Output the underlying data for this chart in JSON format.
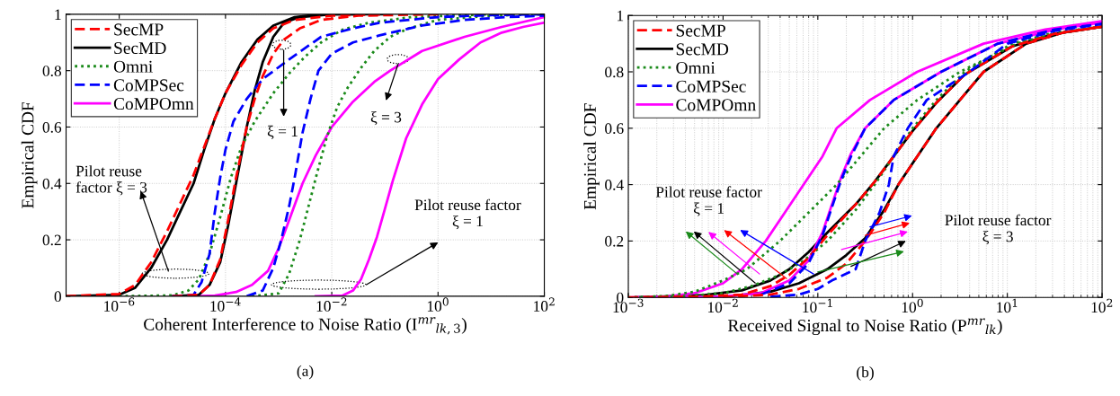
{
  "chart_data": [
    {
      "type": "line",
      "xlabel": "Coherent Interference to Noise Ratio (I$^{mr}$$_{lk,3}$)",
      "ylabel": "Empirical CDF",
      "log": "x",
      "grid": true,
      "legend": "top left",
      "xlim": [
        1e-07,
        100
      ],
      "xticks": [
        {
          "value": 1e-06,
          "label": "10$^{−6}$"
        },
        {
          "value": 0.0001,
          "label": "10$^{−4}$"
        },
        {
          "value": 0.01,
          "label": "10$^{−2}$"
        },
        {
          "value": 1,
          "label": "10$^{0}$"
        },
        {
          "value": 100,
          "label": "10$^{2}$"
        }
      ],
      "ylim": [
        0,
        1
      ],
      "yticks": [
        0,
        0.2,
        0.4,
        0.6,
        0.8,
        1
      ],
      "annotations": [
        "Pilot reuse\nfactor ξ = 3",
        "ξ = 1",
        "ξ = 3",
        "Pilot reuse factor\nξ = 1",
        "(a)"
      ],
      "series": [
        {
          "name": "SecMP",
          "color": "#ff0000",
          "line_style": "dashed",
          "x": [
            1e-07,
            1e-06,
            2e-06,
            3.98e-06,
            7.94e-06,
            1.41e-05,
            2.51e-05,
            3.98e-05,
            6.31e-05,
            0.0001,
            0.0002,
            0.000398,
            0.000794,
            0.002,
            0.01,
            0.1
          ],
          "values": [
            0,
            0.008,
            0.04,
            0.12,
            0.23,
            0.33,
            0.43,
            0.53,
            0.63,
            0.72,
            0.82,
            0.9,
            0.95,
            0.98,
            0.995,
            1
          ]
        },
        {
          "name": "SecMD",
          "color": "#000000",
          "line_style": "solid",
          "x": [
            1e-07,
            1e-06,
            2e-06,
            3.98e-06,
            7.94e-06,
            1.41e-05,
            2.51e-05,
            3.98e-05,
            6.31e-05,
            0.0001,
            0.0002,
            0.000398,
            0.000794,
            0.002,
            0.00631,
            0.0316
          ],
          "values": [
            0,
            0.005,
            0.03,
            0.1,
            0.2,
            0.3,
            0.4,
            0.52,
            0.63,
            0.72,
            0.83,
            0.91,
            0.96,
            0.99,
            1,
            1
          ]
        },
        {
          "name": "Omni",
          "color": "#1a8a1a",
          "line_style": "dotted",
          "x": [
            1e-06,
            1e-05,
            2e-05,
            3.16e-05,
            5.01e-05,
            7.94e-05,
            0.000126,
            0.0002,
            0.000355,
            0.000794,
            0.00158,
            0.00316,
            0.00631,
            0.0158,
            0.0501,
            0.316,
            10
          ],
          "values": [
            0,
            0.003,
            0.02,
            0.06,
            0.15,
            0.28,
            0.42,
            0.53,
            0.62,
            0.72,
            0.79,
            0.85,
            0.9,
            0.945,
            0.97,
            0.99,
            1
          ]
        },
        {
          "name": "CoMPSec",
          "color": "#0000ff",
          "line_style": "dashed",
          "x": [
            1e-05,
            2.51e-05,
            3.55e-05,
            5.01e-05,
            6.31e-05,
            7.94e-05,
            0.0001,
            0.000141,
            0.000251,
            0.000501,
            0.00158,
            0.00631,
            0.0251,
            0.0794,
            1,
            10,
            100
          ],
          "values": [
            0,
            0.005,
            0.05,
            0.15,
            0.3,
            0.42,
            0.52,
            0.62,
            0.7,
            0.77,
            0.84,
            0.92,
            0.95,
            0.97,
            0.99,
            0.997,
            1
          ]
        },
        {
          "name": "CoMPOmn",
          "color": "#ff00ff",
          "line_style": "solid",
          "x": [
            2.51e-05,
            6.31e-05,
            0.000158,
            0.000316,
            0.000631,
            0.001,
            0.00158,
            0.00282,
            0.00501,
            0.01,
            0.0251,
            0.0631,
            0.126,
            0.501,
            3.16,
            15.8,
            100
          ],
          "values": [
            0,
            0.002,
            0.015,
            0.04,
            0.09,
            0.17,
            0.27,
            0.4,
            0.5,
            0.6,
            0.69,
            0.76,
            0.8,
            0.87,
            0.92,
            0.955,
            0.99
          ]
        },
        {
          "color": "#ff0000",
          "line_style": "dashed",
          "x": [
            1e-05,
            3.16e-05,
            5.01e-05,
            7.94e-05,
            0.000112,
            0.000158,
            0.000251,
            0.000355,
            0.000501,
            0.000794,
            0.00126,
            0.00251,
            0.00631,
            0.0316,
            1
          ],
          "values": [
            0,
            0.005,
            0.04,
            0.13,
            0.27,
            0.42,
            0.6,
            0.7,
            0.78,
            0.86,
            0.91,
            0.95,
            0.98,
            0.995,
            1
          ]
        },
        {
          "color": "#000000",
          "line_style": "solid",
          "x": [
            1e-05,
            3.16e-05,
            5.01e-05,
            7.94e-05,
            0.000112,
            0.000158,
            0.000251,
            0.000355,
            0.000501,
            0.000794,
            0.00126,
            0.00251,
            0.01,
            0.1
          ],
          "values": [
            0,
            0.005,
            0.04,
            0.12,
            0.25,
            0.4,
            0.6,
            0.73,
            0.83,
            0.92,
            0.97,
            0.99,
            1,
            1
          ]
        },
        {
          "color": "#1a8a1a",
          "line_style": "dotted",
          "x": [
            0.000316,
            0.001,
            0.00158,
            0.00251,
            0.00355,
            0.00501,
            0.00794,
            0.0126,
            0.02,
            0.0355,
            0.0631,
            0.126,
            0.282,
            1,
            10,
            100
          ],
          "values": [
            0,
            0.01,
            0.08,
            0.2,
            0.31,
            0.42,
            0.56,
            0.67,
            0.74,
            0.81,
            0.87,
            0.92,
            0.95,
            0.98,
            0.995,
            1
          ]
        },
        {
          "color": "#0000ff",
          "line_style": "dashed",
          "x": [
            0.000251,
            0.000501,
            0.000794,
            0.00112,
            0.00158,
            0.002,
            0.00282,
            0.00398,
            0.00562,
            0.01,
            0.0251,
            0.0794,
            0.501,
            3.16,
            20,
            100
          ],
          "values": [
            0,
            0.02,
            0.1,
            0.2,
            0.32,
            0.42,
            0.58,
            0.7,
            0.8,
            0.86,
            0.9,
            0.925,
            0.96,
            0.98,
            0.99,
            0.995
          ]
        },
        {
          "color": "#ff00ff",
          "line_style": "solid",
          "x": [
            0.00501,
            0.0158,
            0.0251,
            0.0355,
            0.0501,
            0.0708,
            0.1,
            0.141,
            0.251,
            0.501,
            1,
            2.51,
            6.31,
            15.8,
            39.8,
            100
          ],
          "values": [
            0,
            0.002,
            0.02,
            0.06,
            0.13,
            0.21,
            0.31,
            0.41,
            0.56,
            0.68,
            0.77,
            0.84,
            0.9,
            0.935,
            0.955,
            0.97
          ]
        }
      ]
    },
    {
      "type": "line",
      "xlabel": "Received Signal to Noise Ratio (P$^{mr}$$_{lk}$)",
      "ylabel": "Empirical CDF",
      "log": "x",
      "grid": true,
      "legend": "top left",
      "xlim": [
        0.001,
        100
      ],
      "xticks": [
        {
          "value": 0.001,
          "label": "10$^{−3}$"
        },
        {
          "value": 0.01,
          "label": "10$^{−2}$"
        },
        {
          "value": 0.1,
          "label": "10$^{−1}$"
        },
        {
          "value": 1,
          "label": "10$^{0}$"
        },
        {
          "value": 10,
          "label": "10$^{1}$"
        },
        {
          "value": 100,
          "label": "10$^{2}$"
        }
      ],
      "ylim": [
        0,
        1
      ],
      "yticks": [
        0,
        0.2,
        0.4,
        0.6,
        0.8,
        1
      ],
      "annotations": [
        "Pilot reuse factor\nξ = 1",
        "Pilot reuse factor\nξ = 3",
        "(b)"
      ],
      "series": [
        {
          "name": "SecMP",
          "color": "#ff0000",
          "line_style": "dashed",
          "x": [
            0.001,
            0.00631,
            0.0158,
            0.0316,
            0.0501,
            0.0794,
            0.126,
            0.251,
            0.398,
            0.631,
            1,
            1.78,
            3.55,
            11.2,
            31.6,
            100
          ],
          "values": [
            0,
            0.003,
            0.01,
            0.04,
            0.08,
            0.14,
            0.22,
            0.33,
            0.41,
            0.5,
            0.59,
            0.69,
            0.79,
            0.89,
            0.935,
            0.96
          ]
        },
        {
          "name": "SecMD",
          "color": "#000000",
          "line_style": "solid",
          "x": [
            0.0012,
            0.00631,
            0.0158,
            0.0316,
            0.0501,
            0.0794,
            0.126,
            0.251,
            0.398,
            0.631,
            1,
            1.78,
            3.55,
            11.2,
            31.6,
            100
          ],
          "values": [
            0,
            0.008,
            0.025,
            0.06,
            0.1,
            0.16,
            0.23,
            0.33,
            0.41,
            0.5,
            0.59,
            0.69,
            0.79,
            0.89,
            0.935,
            0.96
          ]
        },
        {
          "name": "Omni",
          "color": "#1a8a1a",
          "line_style": "dotted",
          "x": [
            0.001,
            0.00251,
            0.00501,
            0.01,
            0.0178,
            0.0398,
            0.0794,
            0.158,
            0.282,
            0.501,
            1.12,
            3.16,
            12.6,
            31.6,
            100
          ],
          "values": [
            0,
            0.005,
            0.02,
            0.06,
            0.1,
            0.2,
            0.3,
            0.4,
            0.5,
            0.6,
            0.7,
            0.8,
            0.9,
            0.935,
            0.96
          ]
        },
        {
          "name": "CoMPSec",
          "color": "#0000ff",
          "line_style": "dashed",
          "x": [
            0.0251,
            0.0501,
            0.0794,
            0.112,
            0.141,
            0.178,
            0.224,
            0.316,
            0.631,
            2,
            7.94,
            31.6,
            100
          ],
          "values": [
            0.01,
            0.05,
            0.12,
            0.22,
            0.32,
            0.42,
            0.5,
            0.6,
            0.7,
            0.8,
            0.9,
            0.95,
            0.97
          ]
        },
        {
          "name": "CoMPOmn",
          "color": "#ff00ff",
          "line_style": "solid",
          "x": [
            0.0011,
            0.00251,
            0.00501,
            0.01,
            0.0158,
            0.0282,
            0.0447,
            0.0708,
            0.112,
            0.158,
            0.355,
            1.12,
            5.62,
            25.1,
            100
          ],
          "values": [
            0,
            0.003,
            0.015,
            0.05,
            0.1,
            0.2,
            0.3,
            0.4,
            0.5,
            0.6,
            0.7,
            0.8,
            0.9,
            0.95,
            0.98
          ]
        },
        {
          "color": "#ff0000",
          "line_style": "dashed",
          "x": [
            0.01,
            0.0316,
            0.0631,
            0.126,
            0.2,
            0.316,
            0.501,
            0.708,
            1.12,
            1.78,
            3.16,
            5.62,
            15.8,
            39.8,
            100
          ],
          "values": [
            0.001,
            0.01,
            0.03,
            0.07,
            0.12,
            0.2,
            0.3,
            0.4,
            0.5,
            0.6,
            0.7,
            0.8,
            0.9,
            0.94,
            0.96
          ]
        },
        {
          "color": "#000000",
          "line_style": "solid",
          "x": [
            0.0018,
            0.01,
            0.0316,
            0.0631,
            0.126,
            0.2,
            0.316,
            0.501,
            0.708,
            1.12,
            1.78,
            3.16,
            5.62,
            15.8,
            39.8,
            100
          ],
          "values": [
            0,
            0.002,
            0.02,
            0.05,
            0.1,
            0.15,
            0.21,
            0.31,
            0.4,
            0.5,
            0.6,
            0.7,
            0.8,
            0.9,
            0.94,
            0.96
          ]
        },
        {
          "color": "#1a8a1a",
          "line_style": "dotted",
          "x": [
            0.0013,
            0.00398,
            0.01,
            0.02,
            0.0398,
            0.0708,
            0.126,
            0.251,
            0.398,
            0.631,
            1,
            1.78,
            3.55,
            11.2,
            31.6,
            100
          ],
          "values": [
            0,
            0.005,
            0.015,
            0.04,
            0.08,
            0.13,
            0.2,
            0.31,
            0.4,
            0.5,
            0.6,
            0.7,
            0.8,
            0.9,
            0.94,
            0.96
          ]
        },
        {
          "color": "#0000ff",
          "line_style": "dashed",
          "x": [
            0.0316,
            0.0631,
            0.1,
            0.141,
            0.251,
            0.316,
            0.447,
            0.562,
            0.631,
            0.891,
            1.41,
            3.98,
            10,
            31.6,
            100
          ],
          "values": [
            0.002,
            0.01,
            0.03,
            0.06,
            0.1,
            0.2,
            0.3,
            0.4,
            0.5,
            0.6,
            0.7,
            0.8,
            0.9,
            0.945,
            0.97
          ]
        },
        {
          "color": "#ff00ff",
          "line_style": "solid",
          "x": [
            0.0016,
            0.01,
            0.0251,
            0.0501,
            0.0794,
            0.112,
            0.141,
            0.178,
            0.224,
            0.316,
            0.631,
            2,
            7.94,
            31.6,
            100
          ],
          "values": [
            0,
            0.003,
            0.015,
            0.06,
            0.13,
            0.23,
            0.33,
            0.43,
            0.51,
            0.6,
            0.7,
            0.8,
            0.9,
            0.95,
            0.975
          ]
        }
      ]
    }
  ]
}
